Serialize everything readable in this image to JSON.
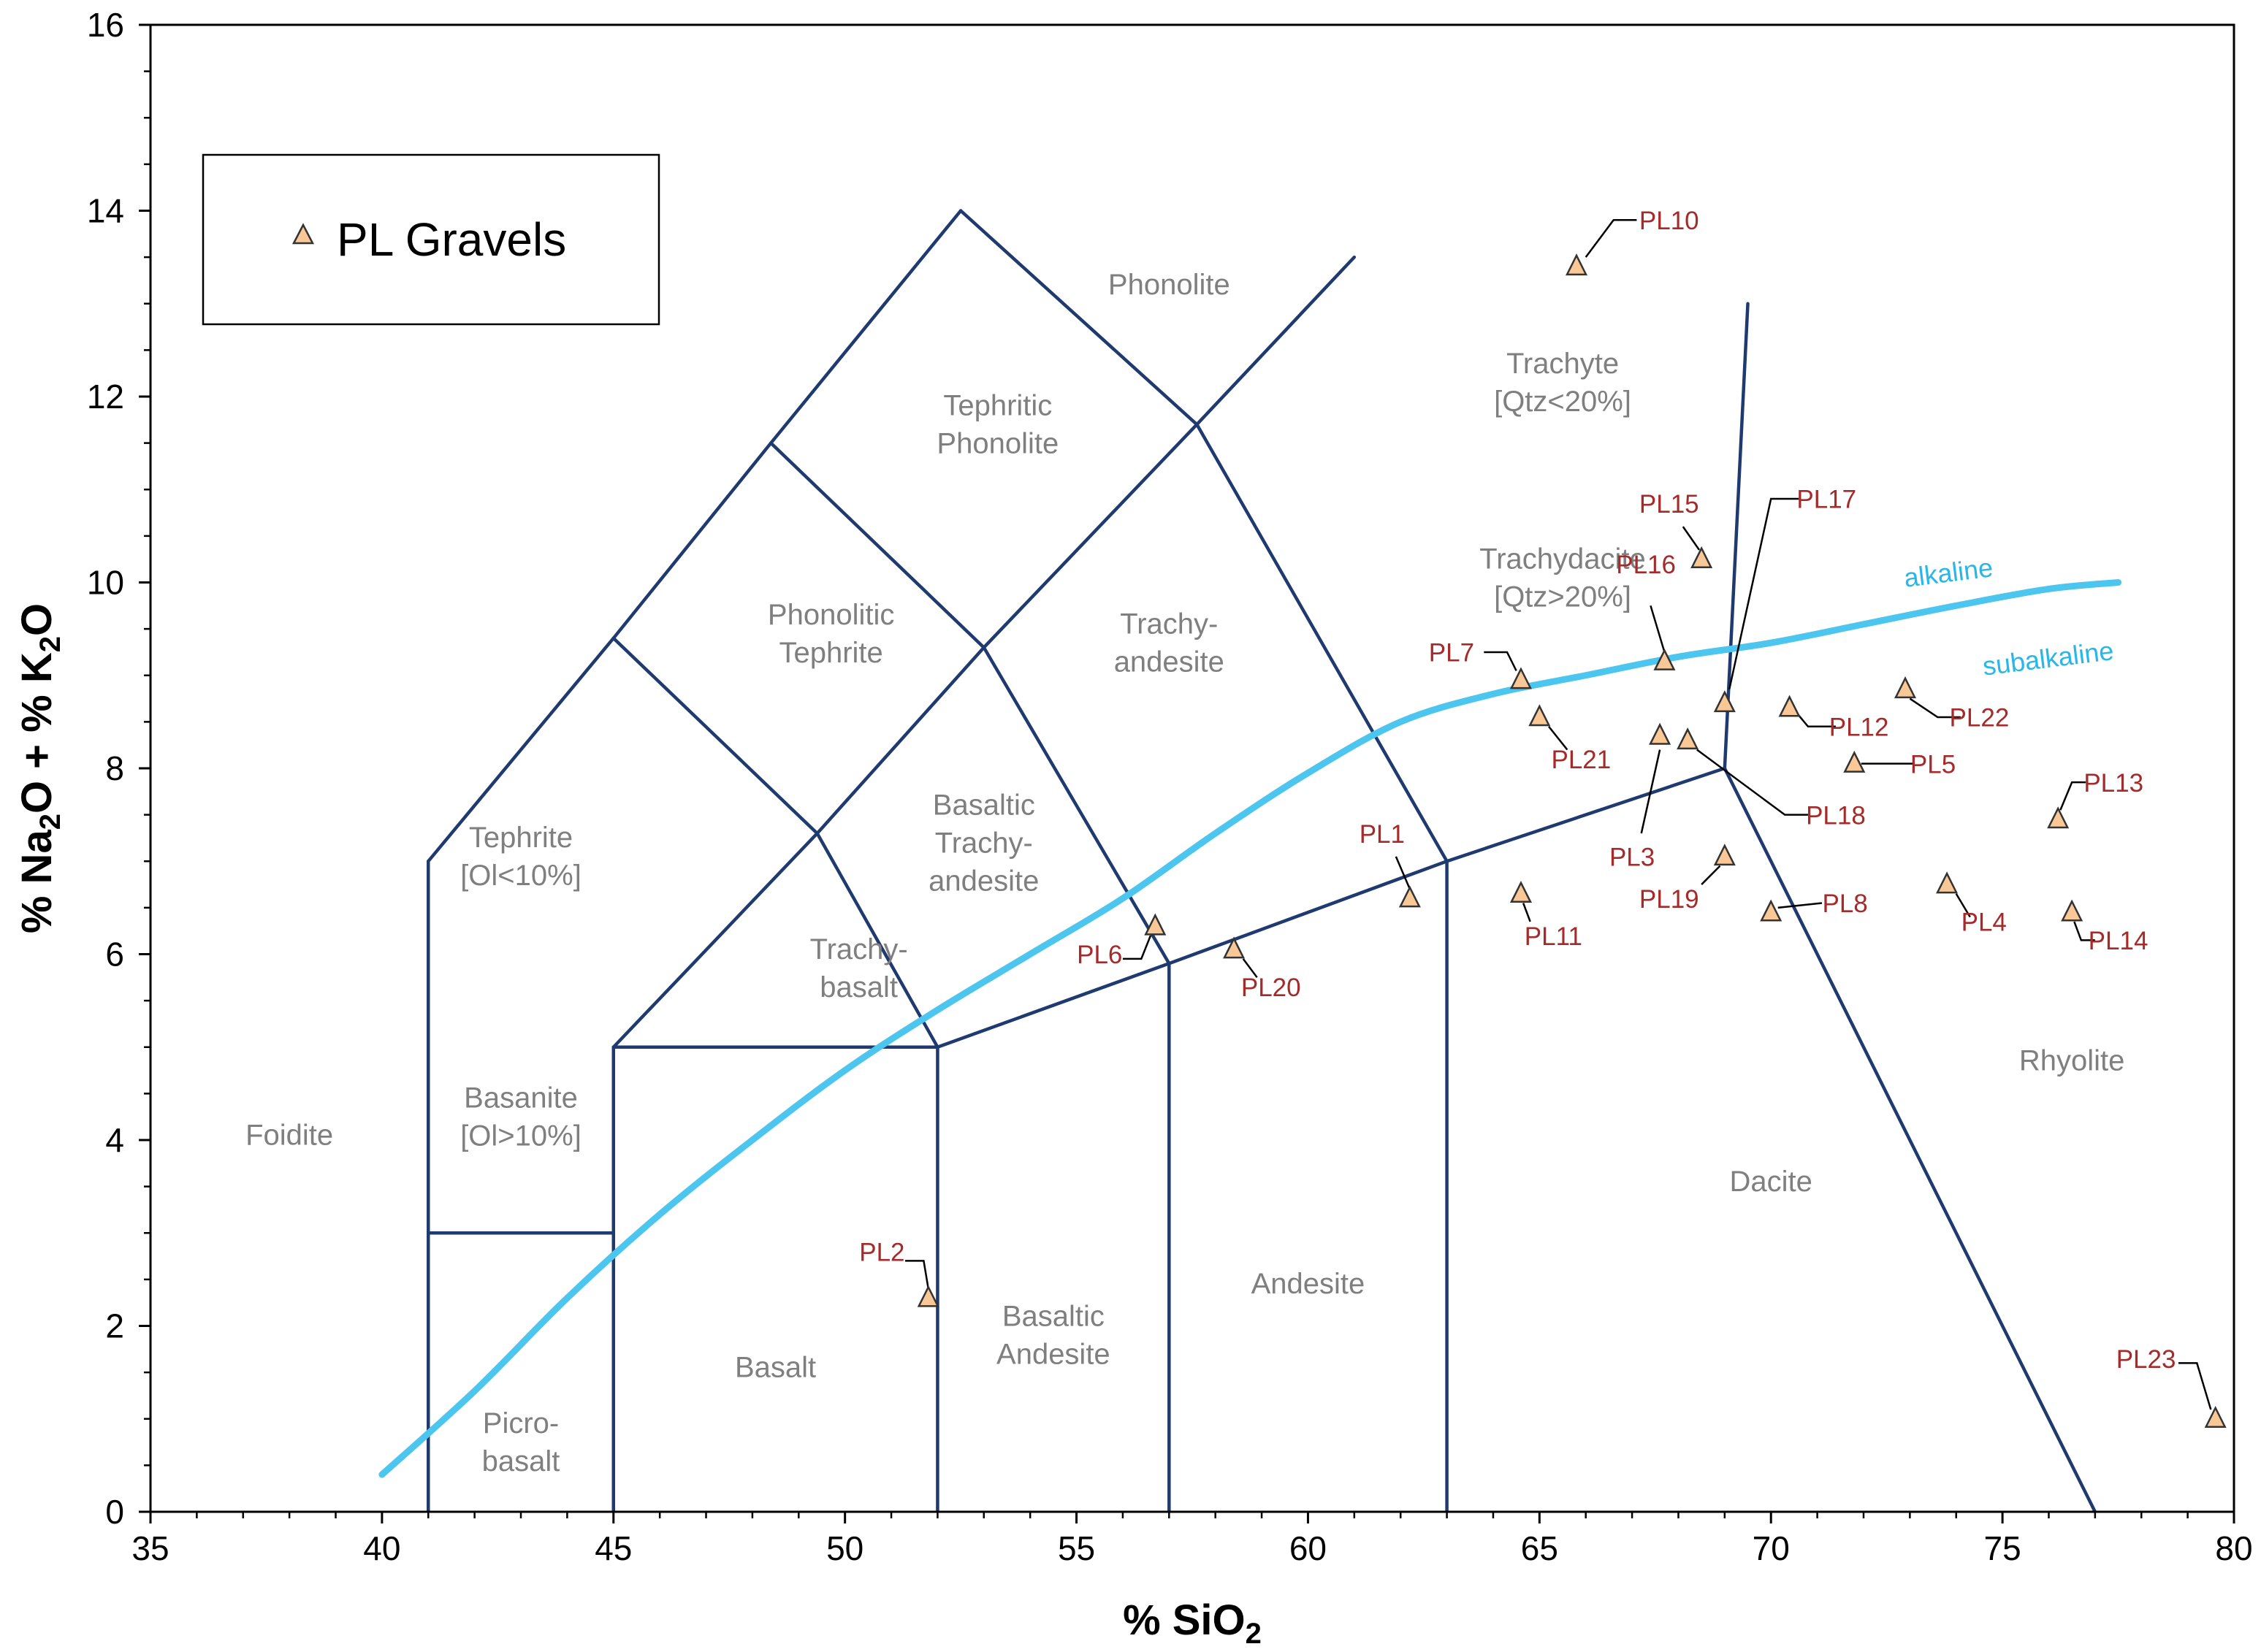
{
  "chart_data": {
    "type": "scatter",
    "title": "",
    "xlabel": "% SiO",
    "xlabel_sub": "2",
    "ylabel_parts": [
      "% Na",
      "2",
      "O + % K",
      "2",
      "O"
    ],
    "xlim": [
      35,
      80
    ],
    "ylim": [
      0,
      16
    ],
    "x_ticks": [
      35,
      40,
      45,
      50,
      55,
      60,
      65,
      70,
      75,
      80
    ],
    "y_ticks": [
      0,
      2,
      4,
      6,
      8,
      10,
      12,
      14,
      16
    ],
    "x_tick_labels": [
      "35",
      "40",
      "45",
      "50",
      "55",
      "60",
      "65",
      "70",
      "75",
      "80"
    ],
    "y_tick_labels": [
      "0",
      "2",
      "4",
      "6",
      "8",
      "10",
      "12",
      "14",
      "16"
    ],
    "legend": {
      "position": "top-left",
      "entries": [
        "PL Gravels"
      ]
    },
    "colors": {
      "boundary": "#1f3a6e",
      "curve": "#4cc6ef",
      "marker_fill": "#f9c896",
      "marker_stroke": "#333333",
      "sample_label": "#a52a2a",
      "field_label": "#7f7f7f"
    },
    "field_boundaries": [
      [
        [
          41,
          0
        ],
        [
          41,
          7
        ]
      ],
      [
        [
          41,
          7
        ],
        [
          45,
          9.4
        ]
      ],
      [
        [
          45,
          9.4
        ],
        [
          48.4,
          11.5
        ]
      ],
      [
        [
          48.4,
          11.5
        ],
        [
          52.5,
          14
        ]
      ],
      [
        [
          52.5,
          14
        ],
        [
          57.6,
          11.7
        ]
      ],
      [
        [
          57.6,
          11.7
        ],
        [
          61,
          13.5
        ]
      ],
      [
        [
          41,
          3
        ],
        [
          45,
          3
        ]
      ],
      [
        [
          45,
          0
        ],
        [
          45,
          5
        ]
      ],
      [
        [
          45,
          5
        ],
        [
          52,
          5
        ]
      ],
      [
        [
          52,
          0
        ],
        [
          52,
          5
        ]
      ],
      [
        [
          57,
          0
        ],
        [
          57,
          5.9
        ]
      ],
      [
        [
          63,
          0
        ],
        [
          63,
          7
        ]
      ],
      [
        [
          52,
          5
        ],
        [
          57,
          5.9
        ]
      ],
      [
        [
          57,
          5.9
        ],
        [
          63,
          7
        ]
      ],
      [
        [
          63,
          7
        ],
        [
          69,
          8
        ]
      ],
      [
        [
          69,
          8
        ],
        [
          77,
          0
        ]
      ],
      [
        [
          69,
          8
        ],
        [
          69.5,
          13
        ]
      ],
      [
        [
          45,
          5
        ],
        [
          49.4,
          7.3
        ]
      ],
      [
        [
          49.4,
          7.3
        ],
        [
          53,
          9.3
        ]
      ],
      [
        [
          53,
          9.3
        ],
        [
          57.6,
          11.7
        ]
      ],
      [
        [
          45,
          9.4
        ],
        [
          49.4,
          7.3
        ]
      ],
      [
        [
          49.4,
          7.3
        ],
        [
          52,
          5
        ]
      ],
      [
        [
          48.4,
          11.5
        ],
        [
          53,
          9.3
        ]
      ],
      [
        [
          53,
          9.3
        ],
        [
          57,
          5.9
        ]
      ],
      [
        [
          57.6,
          11.7
        ],
        [
          63,
          7
        ]
      ]
    ],
    "alkaline_curve": {
      "labels": [
        "alkaline",
        "subalkaline"
      ],
      "x": [
        40,
        42,
        44,
        46,
        48,
        50,
        52,
        54,
        56,
        58,
        60,
        62,
        64,
        66,
        68,
        70,
        72,
        74,
        76,
        77.5
      ],
      "y": [
        0.4,
        1.3,
        2.3,
        3.2,
        4,
        4.75,
        5.4,
        6,
        6.6,
        7.3,
        7.95,
        8.5,
        8.8,
        9.0,
        9.2,
        9.35,
        9.55,
        9.75,
        9.93,
        10.0
      ]
    },
    "fields": [
      {
        "name": "Foidite",
        "lines": [
          "Foidite"
        ],
        "x": 38.0,
        "y": 3.95
      },
      {
        "name": "Picrobasalt",
        "lines": [
          "Picro-",
          "basalt"
        ],
        "x": 43.0,
        "y": 0.85
      },
      {
        "name": "Basalt",
        "lines": [
          "Basalt"
        ],
        "x": 48.5,
        "y": 1.45
      },
      {
        "name": "Basaltic Andesite",
        "lines": [
          "Basaltic",
          "Andesite"
        ],
        "x": 54.5,
        "y": 2.0
      },
      {
        "name": "Andesite",
        "lines": [
          "Andesite"
        ],
        "x": 60.0,
        "y": 2.35
      },
      {
        "name": "Dacite",
        "lines": [
          "Dacite"
        ],
        "x": 70.0,
        "y": 3.45
      },
      {
        "name": "Rhyolite",
        "lines": [
          "Rhyolite"
        ],
        "x": 76.5,
        "y": 4.75
      },
      {
        "name": "Basanite",
        "lines": [
          "Basanite",
          "[Ol>10%]"
        ],
        "x": 43.0,
        "y": 4.35
      },
      {
        "name": "Tephrite",
        "lines": [
          "Tephrite",
          "[Ol<10%]"
        ],
        "x": 43.0,
        "y": 7.15
      },
      {
        "name": "Trachybasalt",
        "lines": [
          "Trachy-",
          "basalt"
        ],
        "x": 50.3,
        "y": 5.95
      },
      {
        "name": "Basaltic Trachyandesite",
        "lines": [
          "Basaltic",
          "Trachy-",
          "andesite"
        ],
        "x": 53.0,
        "y": 7.5
      },
      {
        "name": "Trachyandesite",
        "lines": [
          "Trachy-",
          "andesite"
        ],
        "x": 57.0,
        "y": 9.45
      },
      {
        "name": "Phonolitic Tephrite",
        "lines": [
          "Phonolitic",
          "Tephrite"
        ],
        "x": 49.7,
        "y": 9.55
      },
      {
        "name": "Tephritic Phonolite",
        "lines": [
          "Tephritic",
          "Phonolite"
        ],
        "x": 53.3,
        "y": 11.8
      },
      {
        "name": "Phonolite",
        "lines": [
          "Phonolite"
        ],
        "x": 57.0,
        "y": 13.1
      },
      {
        "name": "Trachyte",
        "lines": [
          "Trachyte",
          "[Qtz<20%]"
        ],
        "x": 65.5,
        "y": 12.25
      },
      {
        "name": "Trachydacite",
        "lines": [
          "Trachydacite",
          "[Qtz>20%]"
        ],
        "x": 65.5,
        "y": 10.15
      }
    ],
    "samples": [
      {
        "label": "PL1",
        "x": 62.2,
        "y": 6.6,
        "lx": 61.6,
        "ly": 7.2,
        "line": [
          [
            61.9,
            7.05
          ],
          [
            62.2,
            6.7
          ]
        ]
      },
      {
        "label": "PL2",
        "x": 51.8,
        "y": 2.3,
        "lx": 50.8,
        "ly": 2.7,
        "line": [
          [
            51.3,
            2.7
          ],
          [
            51.7,
            2.7
          ],
          [
            51.8,
            2.4
          ]
        ]
      },
      {
        "label": "PL3",
        "x": 67.6,
        "y": 8.35,
        "lx": 67.0,
        "ly": 6.95,
        "line": [
          [
            67.2,
            7.3
          ],
          [
            67.6,
            8.2
          ]
        ]
      },
      {
        "label": "PL4",
        "x": 73.8,
        "y": 6.75,
        "lx": 74.6,
        "ly": 6.25,
        "line": [
          [
            74.3,
            6.4
          ],
          [
            74.0,
            6.65
          ]
        ]
      },
      {
        "label": "PL5",
        "x": 71.8,
        "y": 8.05,
        "lx": 73.5,
        "ly": 7.95,
        "line": [
          [
            73.1,
            8.05
          ],
          [
            71.95,
            8.05
          ]
        ]
      },
      {
        "label": "PL6",
        "x": 56.7,
        "y": 6.3,
        "lx": 55.5,
        "ly": 5.9,
        "line": [
          [
            56.0,
            5.95
          ],
          [
            56.4,
            5.95
          ],
          [
            56.6,
            6.2
          ]
        ]
      },
      {
        "label": "PL7",
        "x": 64.6,
        "y": 8.95,
        "lx": 63.1,
        "ly": 9.15,
        "line": [
          [
            63.8,
            9.25
          ],
          [
            64.3,
            9.25
          ],
          [
            64.5,
            9.05
          ]
        ]
      },
      {
        "label": "PL8",
        "x": 70.0,
        "y": 6.45,
        "lx": 71.6,
        "ly": 6.45,
        "line": [
          [
            71.1,
            6.55
          ],
          [
            70.15,
            6.5
          ]
        ]
      },
      {
        "label": "PL10",
        "x": 65.8,
        "y": 13.4,
        "lx": 67.8,
        "ly": 13.8,
        "line": [
          [
            67.1,
            13.9
          ],
          [
            66.6,
            13.9
          ],
          [
            66.0,
            13.5
          ]
        ]
      },
      {
        "label": "PL11",
        "x": 64.6,
        "y": 6.65,
        "lx": 65.3,
        "ly": 6.1,
        "line": [
          [
            64.8,
            6.35
          ],
          [
            64.65,
            6.55
          ]
        ]
      },
      {
        "label": "PL12",
        "x": 70.4,
        "y": 8.65,
        "lx": 71.9,
        "ly": 8.35,
        "line": [
          [
            71.4,
            8.45
          ],
          [
            70.8,
            8.45
          ],
          [
            70.55,
            8.6
          ]
        ]
      },
      {
        "label": "PL13",
        "x": 76.2,
        "y": 7.45,
        "lx": 77.4,
        "ly": 7.75,
        "line": [
          [
            76.8,
            7.85
          ],
          [
            76.5,
            7.85
          ],
          [
            76.25,
            7.55
          ]
        ]
      },
      {
        "label": "PL14",
        "x": 76.5,
        "y": 6.45,
        "lx": 77.5,
        "ly": 6.05,
        "line": [
          [
            77.0,
            6.15
          ],
          [
            76.7,
            6.15
          ],
          [
            76.55,
            6.35
          ]
        ]
      },
      {
        "label": "PL15",
        "x": 68.5,
        "y": 10.25,
        "lx": 67.8,
        "ly": 10.75,
        "line": [
          [
            68.1,
            10.6
          ],
          [
            68.45,
            10.35
          ]
        ]
      },
      {
        "label": "PL16",
        "x": 67.7,
        "y": 9.15,
        "lx": 67.3,
        "ly": 10.1,
        "line": [
          [
            67.4,
            9.75
          ],
          [
            67.7,
            9.25
          ]
        ]
      },
      {
        "label": "PL17",
        "x": 69.0,
        "y": 8.7,
        "lx": 71.2,
        "ly": 10.8,
        "line": [
          [
            70.6,
            10.9
          ],
          [
            70.0,
            10.9
          ],
          [
            69.1,
            8.85
          ]
        ]
      },
      {
        "label": "PL18",
        "x": 68.2,
        "y": 8.3,
        "lx": 71.4,
        "ly": 7.4,
        "line": [
          [
            70.8,
            7.5
          ],
          [
            70.3,
            7.5
          ],
          [
            68.4,
            8.2
          ]
        ]
      },
      {
        "label": "PL19",
        "x": 69.0,
        "y": 7.05,
        "lx": 67.8,
        "ly": 6.5,
        "line": [
          [
            68.5,
            6.75
          ],
          [
            68.9,
            6.95
          ]
        ]
      },
      {
        "label": "PL20",
        "x": 58.4,
        "y": 6.05,
        "lx": 59.2,
        "ly": 5.55,
        "line": [
          [
            58.9,
            5.75
          ],
          [
            58.6,
            5.95
          ]
        ]
      },
      {
        "label": "PL21",
        "x": 65.0,
        "y": 8.55,
        "lx": 65.9,
        "ly": 8.0,
        "line": [
          [
            65.6,
            8.2
          ],
          [
            65.2,
            8.45
          ]
        ]
      },
      {
        "label": "PL22",
        "x": 72.9,
        "y": 8.85,
        "lx": 74.5,
        "ly": 8.45,
        "line": [
          [
            74.1,
            8.55
          ],
          [
            73.6,
            8.55
          ],
          [
            73.0,
            8.75
          ]
        ]
      },
      {
        "label": "PL23",
        "x": 79.6,
        "y": 1.0,
        "lx": 78.1,
        "ly": 1.55,
        "line": [
          [
            78.8,
            1.6
          ],
          [
            79.2,
            1.6
          ],
          [
            79.5,
            1.1
          ]
        ]
      }
    ]
  }
}
